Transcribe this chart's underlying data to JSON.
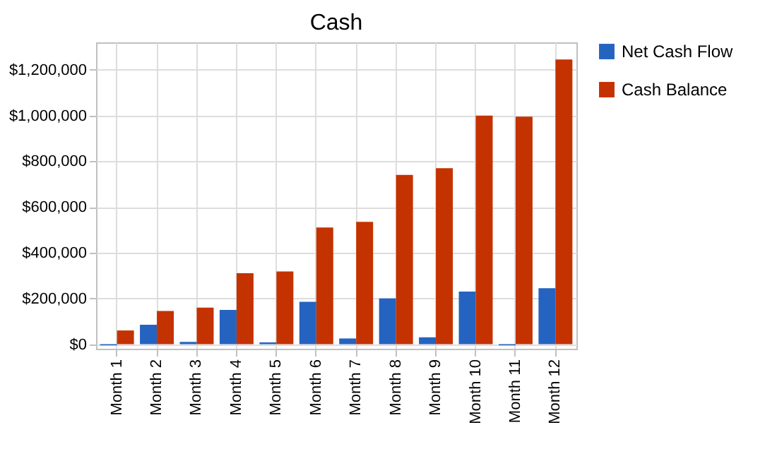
{
  "chart_data": {
    "type": "bar",
    "title": "Cash",
    "categories": [
      "Month 1",
      "Month 2",
      "Month 3",
      "Month 4",
      "Month 5",
      "Month 6",
      "Month 7",
      "Month 8",
      "Month 9",
      "Month 10",
      "Month 11",
      "Month 12"
    ],
    "series": [
      {
        "name": "Net Cash Flow",
        "color": "#2563c0",
        "values": [
          -5000,
          85000,
          10000,
          150000,
          8000,
          185000,
          25000,
          200000,
          30000,
          230000,
          -5000,
          245000
        ]
      },
      {
        "name": "Cash Balance",
        "color": "#c43200",
        "values": [
          60000,
          145000,
          160000,
          310000,
          318000,
          510000,
          535000,
          740000,
          770000,
          1000000,
          995000,
          1245000
        ]
      }
    ],
    "ylim": [
      -20000,
      1320000
    ],
    "yticks": [
      {
        "value": 0,
        "label": "$0"
      },
      {
        "value": 200000,
        "label": "$200,000"
      },
      {
        "value": 400000,
        "label": "$400,000"
      },
      {
        "value": 600000,
        "label": "$600,000"
      },
      {
        "value": 800000,
        "label": "$800,000"
      },
      {
        "value": 1000000,
        "label": "$1,000,000"
      },
      {
        "value": 1200000,
        "label": "$1,200,000"
      }
    ],
    "grid": true,
    "legend": "right"
  }
}
